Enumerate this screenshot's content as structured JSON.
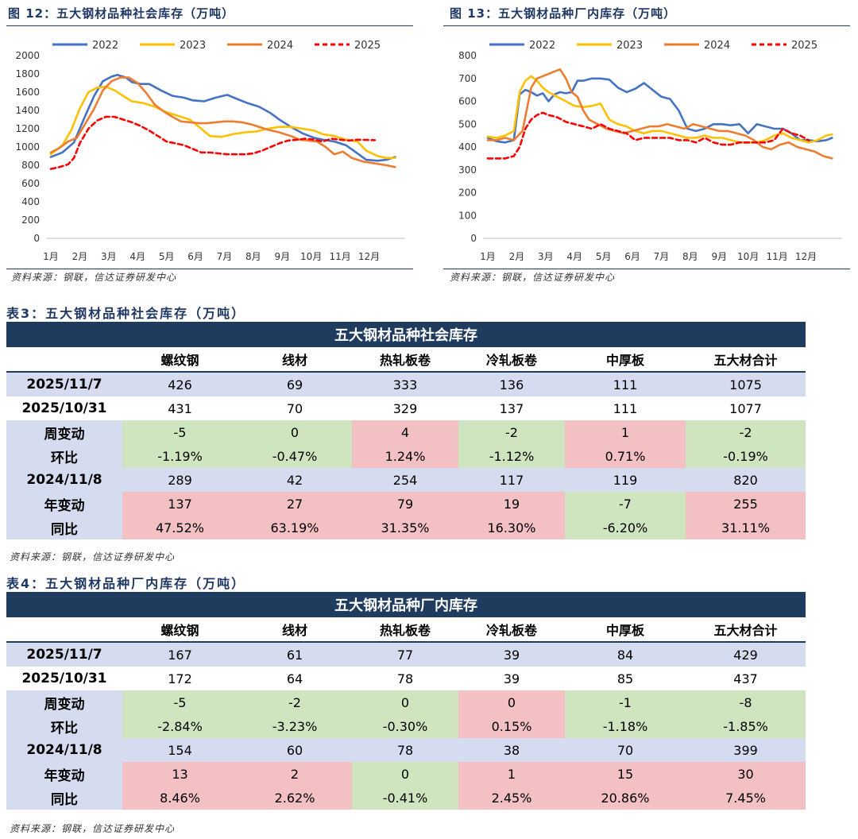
{
  "fig12": {
    "title": "图 12：五大钢材品种社会库存（万吨）",
    "source": "资料来源：钢联，信达证券研发中心"
  },
  "fig13": {
    "title": "图 13：五大钢材品种厂内库存（万吨）",
    "source": "资料来源：钢联，信达证券研发中心"
  },
  "chart_data": [
    {
      "type": "line",
      "title": "五大钢材品种社会库存（万吨）",
      "xlabel": "",
      "ylabel": "",
      "x_ticks": [
        "1月",
        "2月",
        "3月",
        "4月",
        "5月",
        "6月",
        "7月",
        "8月",
        "9月",
        "10月",
        "11月",
        "12月"
      ],
      "ylim": [
        0,
        2000
      ],
      "y_ticks": [
        0,
        200,
        400,
        600,
        800,
        1000,
        1200,
        1400,
        1600,
        1800,
        2000
      ],
      "legend_position": "top",
      "series": [
        {
          "name": "2022",
          "color": "#4472c4",
          "dashed": false,
          "x": [
            0,
            0.4,
            0.8,
            1.2,
            1.5,
            1.8,
            2.1,
            2.3,
            2.6,
            2.8,
            3.1,
            3.4,
            3.8,
            4.2,
            4.6,
            4.9,
            5.3,
            5.7,
            6.1,
            6.4,
            6.8,
            7.2,
            7.6,
            7.9,
            8.3,
            8.7,
            9.1,
            9.4,
            9.8,
            10.2,
            10.6,
            10.9,
            11.3,
            11.6,
            11.9
          ],
          "y": [
            890,
            940,
            1050,
            1350,
            1560,
            1720,
            1770,
            1790,
            1760,
            1710,
            1690,
            1690,
            1620,
            1560,
            1540,
            1510,
            1500,
            1540,
            1570,
            1530,
            1480,
            1440,
            1370,
            1300,
            1220,
            1150,
            1100,
            1080,
            1060,
            1020,
            930,
            860,
            850,
            860,
            890
          ]
        },
        {
          "name": "2023",
          "color": "#ffc000",
          "dashed": false,
          "x": [
            0,
            0.4,
            0.7,
            1.0,
            1.3,
            1.6,
            1.9,
            2.2,
            2.5,
            2.8,
            3.2,
            3.6,
            4.0,
            4.4,
            4.8,
            5.2,
            5.5,
            5.9,
            6.3,
            6.7,
            7.1,
            7.5,
            7.9,
            8.3,
            8.7,
            9.1,
            9.4,
            9.8,
            10.2,
            10.6,
            10.9,
            11.3,
            11.6,
            11.9
          ],
          "y": [
            920,
            1020,
            1180,
            1420,
            1600,
            1650,
            1660,
            1620,
            1560,
            1500,
            1480,
            1440,
            1380,
            1340,
            1300,
            1200,
            1120,
            1110,
            1140,
            1160,
            1170,
            1200,
            1220,
            1220,
            1200,
            1180,
            1140,
            1120,
            1080,
            1060,
            960,
            900,
            880,
            880
          ]
        },
        {
          "name": "2024",
          "color": "#ed7d31",
          "dashed": false,
          "x": [
            0,
            0.3,
            0.6,
            0.9,
            1.2,
            1.5,
            1.8,
            2.1,
            2.4,
            2.7,
            3.0,
            3.3,
            3.6,
            3.9,
            4.2,
            4.5,
            4.8,
            5.1,
            5.4,
            5.7,
            6.0,
            6.3,
            6.6,
            6.9,
            7.2,
            7.5,
            7.9,
            8.3,
            8.6,
            8.9,
            9.2,
            9.5,
            9.8,
            10.1,
            10.4,
            10.8,
            11.2,
            11.6,
            11.9
          ],
          "y": [
            940,
            990,
            1060,
            1100,
            1260,
            1420,
            1620,
            1720,
            1760,
            1760,
            1700,
            1590,
            1460,
            1390,
            1330,
            1280,
            1270,
            1260,
            1260,
            1270,
            1280,
            1280,
            1270,
            1250,
            1220,
            1190,
            1160,
            1120,
            1080,
            1070,
            1060,
            1000,
            920,
            950,
            880,
            840,
            820,
            800,
            780
          ]
        },
        {
          "name": "2025",
          "color": "#ff0000",
          "dashed": true,
          "x": [
            0,
            0.3,
            0.6,
            0.8,
            1.0,
            1.3,
            1.6,
            1.9,
            2.2,
            2.5,
            2.8,
            3.1,
            3.4,
            3.7,
            4.0,
            4.3,
            4.6,
            4.9,
            5.2,
            5.5,
            5.8,
            6.1,
            6.4,
            6.7,
            7.0,
            7.3,
            7.6,
            7.9,
            8.2,
            8.5,
            8.8,
            9.1,
            9.4,
            9.7,
            10.0,
            10.3,
            10.6,
            10.9,
            11.2
          ],
          "y": [
            760,
            780,
            810,
            880,
            1040,
            1200,
            1290,
            1330,
            1330,
            1300,
            1270,
            1230,
            1180,
            1120,
            1060,
            1040,
            1020,
            980,
            940,
            940,
            930,
            920,
            920,
            920,
            930,
            960,
            1000,
            1040,
            1070,
            1080,
            1090,
            1080,
            1060,
            1090,
            1080,
            1070,
            1080,
            1077,
            1075
          ]
        }
      ]
    },
    {
      "type": "line",
      "title": "五大钢材品种厂内库存（万吨）",
      "xlabel": "",
      "ylabel": "",
      "x_ticks": [
        "1月",
        "2月",
        "3月",
        "4月",
        "5月",
        "6月",
        "7月",
        "8月",
        "9月",
        "10月",
        "11月",
        "12月"
      ],
      "ylim": [
        0,
        800
      ],
      "y_ticks": [
        0,
        100,
        200,
        300,
        400,
        500,
        600,
        700,
        800
      ],
      "legend_position": "top",
      "series": [
        {
          "name": "2022",
          "color": "#4472c4",
          "dashed": false,
          "x": [
            0,
            0.3,
            0.6,
            0.9,
            1.1,
            1.3,
            1.5,
            1.7,
            1.9,
            2.1,
            2.3,
            2.5,
            2.7,
            2.9,
            3.1,
            3.3,
            3.6,
            3.9,
            4.2,
            4.5,
            4.8,
            5.1,
            5.4,
            5.7,
            6.0,
            6.3,
            6.6,
            6.9,
            7.2,
            7.5,
            7.8,
            8.1,
            8.4,
            8.7,
            9.0,
            9.3,
            9.6,
            9.9,
            10.2,
            10.5,
            10.8,
            11.1,
            11.4,
            11.7,
            11.9
          ],
          "y": [
            440,
            425,
            420,
            430,
            630,
            650,
            640,
            625,
            635,
            600,
            630,
            640,
            635,
            640,
            690,
            690,
            700,
            700,
            695,
            660,
            640,
            655,
            680,
            650,
            620,
            610,
            560,
            480,
            470,
            480,
            500,
            500,
            495,
            500,
            460,
            500,
            490,
            480,
            480,
            460,
            430,
            430,
            425,
            430,
            440
          ]
        },
        {
          "name": "2023",
          "color": "#ffc000",
          "dashed": false,
          "x": [
            0,
            0.3,
            0.6,
            0.9,
            1.1,
            1.3,
            1.5,
            1.7,
            1.9,
            2.1,
            2.4,
            2.7,
            3.0,
            3.3,
            3.6,
            3.9,
            4.2,
            4.5,
            4.8,
            5.1,
            5.4,
            5.7,
            6.0,
            6.3,
            6.6,
            6.9,
            7.2,
            7.5,
            7.8,
            8.1,
            8.4,
            8.7,
            9.0,
            9.3,
            9.6,
            9.9,
            10.2,
            10.5,
            10.8,
            11.1,
            11.4,
            11.7,
            11.9
          ],
          "y": [
            445,
            440,
            450,
            470,
            640,
            690,
            710,
            690,
            660,
            640,
            620,
            600,
            580,
            575,
            580,
            590,
            520,
            500,
            490,
            470,
            460,
            470,
            470,
            460,
            450,
            440,
            440,
            450,
            440,
            440,
            430,
            420,
            420,
            420,
            430,
            450,
            460,
            440,
            430,
            420,
            430,
            450,
            455
          ]
        },
        {
          "name": "2024",
          "color": "#ed7d31",
          "dashed": false,
          "x": [
            0,
            0.3,
            0.6,
            0.9,
            1.2,
            1.5,
            1.7,
            1.9,
            2.1,
            2.3,
            2.5,
            2.7,
            2.9,
            3.1,
            3.3,
            3.5,
            3.8,
            4.1,
            4.4,
            4.7,
            5.0,
            5.3,
            5.6,
            5.9,
            6.2,
            6.5,
            6.8,
            7.1,
            7.4,
            7.7,
            8.0,
            8.3,
            8.6,
            8.9,
            9.2,
            9.5,
            9.8,
            10.1,
            10.4,
            10.7,
            11.0,
            11.3,
            11.6,
            11.9
          ],
          "y": [
            430,
            430,
            440,
            430,
            470,
            660,
            700,
            710,
            720,
            730,
            740,
            700,
            640,
            620,
            560,
            520,
            500,
            480,
            470,
            460,
            470,
            480,
            490,
            490,
            500,
            490,
            480,
            500,
            490,
            480,
            470,
            470,
            460,
            450,
            430,
            400,
            390,
            410,
            420,
            400,
            390,
            380,
            360,
            350
          ]
        },
        {
          "name": "2025",
          "color": "#ff0000",
          "dashed": true,
          "x": [
            0,
            0.3,
            0.6,
            0.9,
            1.1,
            1.3,
            1.5,
            1.7,
            1.9,
            2.1,
            2.4,
            2.7,
            3.0,
            3.3,
            3.6,
            3.9,
            4.2,
            4.5,
            4.8,
            5.1,
            5.4,
            5.7,
            6.0,
            6.3,
            6.6,
            6.9,
            7.2,
            7.5,
            7.8,
            8.1,
            8.4,
            8.7,
            9.0,
            9.3,
            9.6,
            9.9,
            10.2,
            10.5,
            10.8,
            11.1
          ],
          "y": [
            350,
            350,
            350,
            360,
            400,
            480,
            520,
            540,
            550,
            540,
            530,
            510,
            500,
            490,
            480,
            500,
            480,
            470,
            460,
            430,
            440,
            440,
            440,
            440,
            430,
            430,
            420,
            440,
            420,
            410,
            410,
            420,
            420,
            420,
            420,
            430,
            480,
            460,
            450,
            429
          ]
        }
      ]
    }
  ],
  "table3": {
    "title": "表3：五大钢材品种社会库存（万吨）",
    "banner": "五大钢材品种社会库存",
    "headers": [
      "",
      "螺纹钢",
      "线材",
      "热轧板卷",
      "冷轧板卷",
      "中厚板",
      "五大材合计"
    ],
    "rows": [
      {
        "label": "2025/11/7",
        "cells": [
          "426",
          "69",
          "333",
          "136",
          "111",
          "1075"
        ]
      },
      {
        "label": "2025/10/31",
        "cells": [
          "431",
          "70",
          "329",
          "137",
          "111",
          "1077"
        ]
      },
      {
        "label": "周变动",
        "cells": [
          "-5",
          "0",
          "4",
          "-2",
          "1",
          "-2"
        ]
      },
      {
        "label": "环比",
        "cells": [
          "-1.19%",
          "-0.47%",
          "1.24%",
          "-1.12%",
          "0.71%",
          "-0.19%"
        ]
      },
      {
        "label": "2024/11/8",
        "cells": [
          "289",
          "42",
          "254",
          "117",
          "119",
          "820"
        ]
      },
      {
        "label": "年变动",
        "cells": [
          "137",
          "27",
          "79",
          "19",
          "-7",
          "255"
        ]
      },
      {
        "label": "同比",
        "cells": [
          "47.52%",
          "63.19%",
          "31.35%",
          "16.30%",
          "-6.20%",
          "31.11%"
        ]
      }
    ],
    "source": "资料来源：钢联，信达证券研发中心"
  },
  "table4": {
    "title": "表4：五大钢材品种厂内库存（万吨）",
    "banner": "五大钢材品种厂内库存",
    "headers": [
      "",
      "螺纹钢",
      "线材",
      "热轧板卷",
      "冷轧板卷",
      "中厚板",
      "五大材合计"
    ],
    "rows": [
      {
        "label": "2025/11/7",
        "cells": [
          "167",
          "61",
          "77",
          "39",
          "84",
          "429"
        ]
      },
      {
        "label": "2025/10/31",
        "cells": [
          "172",
          "64",
          "78",
          "39",
          "85",
          "437"
        ]
      },
      {
        "label": "周变动",
        "cells": [
          "-5",
          "-2",
          "0",
          "0",
          "-1",
          "-8"
        ]
      },
      {
        "label": "环比",
        "cells": [
          "-2.84%",
          "-3.23%",
          "-0.30%",
          "0.15%",
          "-1.18%",
          "-1.85%"
        ]
      },
      {
        "label": "2024/11/8",
        "cells": [
          "154",
          "60",
          "78",
          "38",
          "70",
          "399"
        ]
      },
      {
        "label": "年变动",
        "cells": [
          "13",
          "2",
          "0",
          "1",
          "15",
          "30"
        ]
      },
      {
        "label": "同比",
        "cells": [
          "8.46%",
          "2.62%",
          "-0.41%",
          "2.45%",
          "20.86%",
          "7.45%"
        ]
      }
    ],
    "source": "资料来源：钢联，信达证券研发中心"
  }
}
